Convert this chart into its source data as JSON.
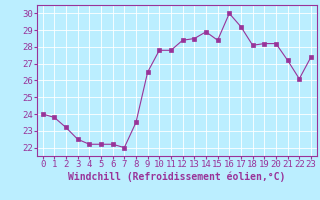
{
  "x": [
    0,
    1,
    2,
    3,
    4,
    5,
    6,
    7,
    8,
    9,
    10,
    11,
    12,
    13,
    14,
    15,
    16,
    17,
    18,
    19,
    20,
    21,
    22,
    23
  ],
  "y": [
    24.0,
    23.8,
    23.2,
    22.5,
    22.2,
    22.2,
    22.2,
    22.0,
    23.5,
    26.5,
    27.8,
    27.8,
    28.4,
    28.5,
    28.9,
    28.4,
    30.0,
    29.2,
    28.1,
    28.2,
    28.2,
    27.2,
    26.1,
    27.4
  ],
  "line_color": "#993399",
  "marker": "s",
  "marker_size": 2.5,
  "xlabel": "Windchill (Refroidissement éolien,°C)",
  "xlim": [
    -0.5,
    23.5
  ],
  "ylim": [
    21.5,
    30.5
  ],
  "yticks": [
    22,
    23,
    24,
    25,
    26,
    27,
    28,
    29,
    30
  ],
  "xticks": [
    0,
    1,
    2,
    3,
    4,
    5,
    6,
    7,
    8,
    9,
    10,
    11,
    12,
    13,
    14,
    15,
    16,
    17,
    18,
    19,
    20,
    21,
    22,
    23
  ],
  "bg_color": "#bbeeff",
  "grid_color": "#ffffff",
  "spine_color": "#993399",
  "tick_color": "#993399",
  "label_color": "#993399",
  "font_size": 6.5,
  "xlabel_fontsize": 7.0
}
